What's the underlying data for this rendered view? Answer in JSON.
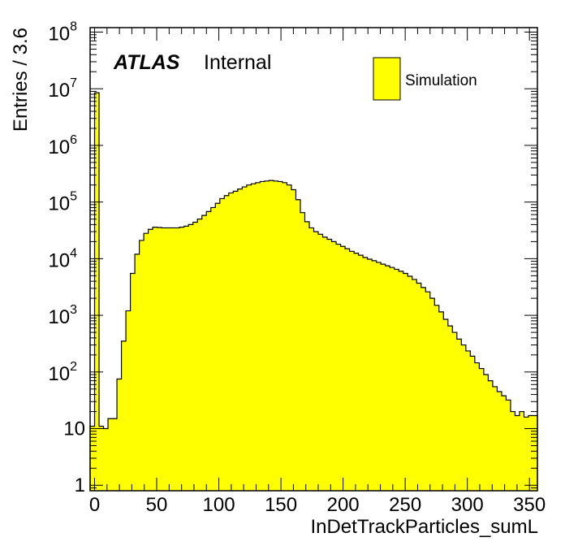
{
  "chart_data": {
    "type": "histogram",
    "title": "",
    "xlabel": "InDetTrackParticles_sumL",
    "ylabel": "Entries / 3.6",
    "xlim": [
      -3.6,
      356.4
    ],
    "ylim": [
      0.8,
      120000000
    ],
    "yscale": "log",
    "bin_width": 3.6,
    "bin_start": -3.6,
    "grid": false,
    "fill_color": "#ffff00",
    "line_color": "#000000",
    "atlas_label": "ATLAS",
    "atlas_status": "Internal",
    "legend": {
      "position": "top-right",
      "entries": [
        {
          "name": "Simulation",
          "color": "#ffff00"
        }
      ]
    },
    "x_ticks": [
      {
        "value": 0,
        "label": "0"
      },
      {
        "value": 50,
        "label": "50"
      },
      {
        "value": 100,
        "label": "100"
      },
      {
        "value": 150,
        "label": "150"
      },
      {
        "value": 200,
        "label": "200"
      },
      {
        "value": 250,
        "label": "250"
      },
      {
        "value": 300,
        "label": "300"
      },
      {
        "value": 350,
        "label": "350"
      }
    ],
    "y_ticks": [
      {
        "value": 1,
        "label": "1"
      },
      {
        "value": 10,
        "label": "10"
      },
      {
        "value": 100,
        "base": "10",
        "exp": "2"
      },
      {
        "value": 1000,
        "base": "10",
        "exp": "3"
      },
      {
        "value": 10000,
        "base": "10",
        "exp": "4"
      },
      {
        "value": 100000,
        "base": "10",
        "exp": "5"
      },
      {
        "value": 1000000,
        "base": "10",
        "exp": "6"
      },
      {
        "value": 10000000,
        "base": "10",
        "exp": "7"
      },
      {
        "value": 100000000,
        "base": "10",
        "exp": "8"
      }
    ],
    "values": [
      11,
      8500000,
      11,
      10,
      15,
      15,
      75,
      350,
      1200,
      5500,
      12000,
      21000,
      28000,
      33000,
      36000,
      35500,
      35000,
      35000,
      35000,
      35000,
      36000,
      37500,
      40000,
      44000,
      50000,
      58000,
      68000,
      80000,
      95000,
      115000,
      130000,
      145000,
      155000,
      170000,
      185000,
      200000,
      210000,
      220000,
      230000,
      235000,
      240000,
      235000,
      230000,
      220000,
      200000,
      165000,
      110000,
      65000,
      45000,
      35000,
      30000,
      27000,
      24000,
      22000,
      20000,
      18000,
      16500,
      15000,
      13500,
      12500,
      11500,
      10500,
      9800,
      9200,
      8600,
      8000,
      7500,
      7000,
      6500,
      6000,
      5500,
      4900,
      4300,
      3700,
      3100,
      2600,
      2000,
      1500,
      1150,
      850,
      650,
      500,
      380,
      300,
      235,
      190,
      145,
      115,
      90,
      70,
      55,
      45,
      38,
      32,
      20,
      17,
      20,
      16,
      17,
      17
    ]
  }
}
